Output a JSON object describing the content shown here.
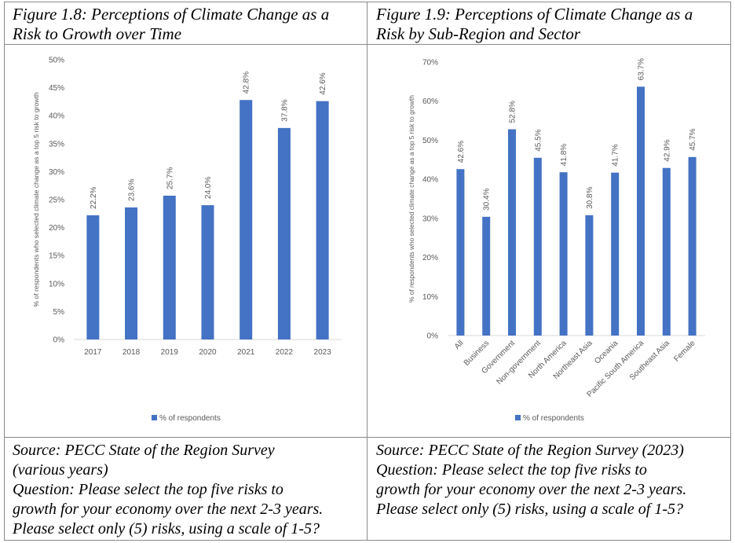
{
  "left_panel": {
    "title": [
      "Figure 1.8: Perceptions of Climate Change as a",
      "Risk to Growth over Time"
    ],
    "source": [
      "Source: PECC State of the Region Survey",
      "(various years)"
    ],
    "question": [
      "Question: Please select the top five risks to",
      "growth for your economy over the next 2-3 years.",
      "Please select only (5) risks, using a scale of 1-5?"
    ]
  },
  "right_panel": {
    "title": [
      "Figure 1.9: Perceptions of Climate Change as a",
      "Risk by Sub-Region and Sector"
    ],
    "source": [
      "Source: PECC State of the Region Survey (2023)"
    ],
    "question": [
      "Question: Please select the top five risks to",
      "growth for your economy over the next 2-3 years.",
      "Please select only (5) risks, using a scale of 1-5?"
    ]
  },
  "colors": {
    "bar": "#4472c4",
    "axis_text": "#595959",
    "border": "#8a8a8a"
  },
  "chart_data": [
    {
      "type": "bar",
      "title": "Figure 1.8: Perceptions of Climate Change as a Risk to Growth over Time",
      "categories": [
        "2017",
        "2018",
        "2019",
        "2020",
        "2021",
        "2022",
        "2023"
      ],
      "series": [
        {
          "name": "% of respondents",
          "values": [
            22.2,
            23.6,
            25.7,
            24.0,
            42.8,
            37.8,
            42.6
          ]
        }
      ],
      "data_labels": [
        "22.2%",
        "23.6%",
        "25.7%",
        "24.0%",
        "42.8%",
        "37.8%",
        "42.6%"
      ],
      "ylabel": "% of respondents who selected climate change as a top 5 risk to growth",
      "xlabel": "",
      "ylim": [
        0,
        50
      ],
      "yticks": [
        "0%",
        "5%",
        "10%",
        "15%",
        "20%",
        "25%",
        "30%",
        "35%",
        "40%",
        "45%",
        "50%"
      ],
      "grid": false,
      "legend": "bottom"
    },
    {
      "type": "bar",
      "title": "Figure 1.9: Perceptions of Climate Change as a Risk by Sub-Region and Sector",
      "categories": [
        "All",
        "Business",
        "Government",
        "Non-government",
        "North America",
        "Northeast Asia",
        "Oceania",
        "Pacific South America",
        "Southeast Asia",
        "Female"
      ],
      "series": [
        {
          "name": "% of respondents",
          "values": [
            42.6,
            30.4,
            52.8,
            45.5,
            41.8,
            30.8,
            41.7,
            63.7,
            42.9,
            45.7
          ]
        }
      ],
      "data_labels": [
        "42.6%",
        "30.4%",
        "52.8%",
        "45.5%",
        "41.8%",
        "30.8%",
        "41.7%",
        "63.7%",
        "42.9%",
        "45.7%"
      ],
      "ylabel": "% of respondents who selected climate change as a top 5 risk to growth",
      "xlabel": "",
      "ylim": [
        0,
        70
      ],
      "yticks": [
        "0%",
        "10%",
        "20%",
        "30%",
        "40%",
        "50%",
        "60%",
        "70%"
      ],
      "grid": false,
      "legend": "bottom"
    }
  ]
}
